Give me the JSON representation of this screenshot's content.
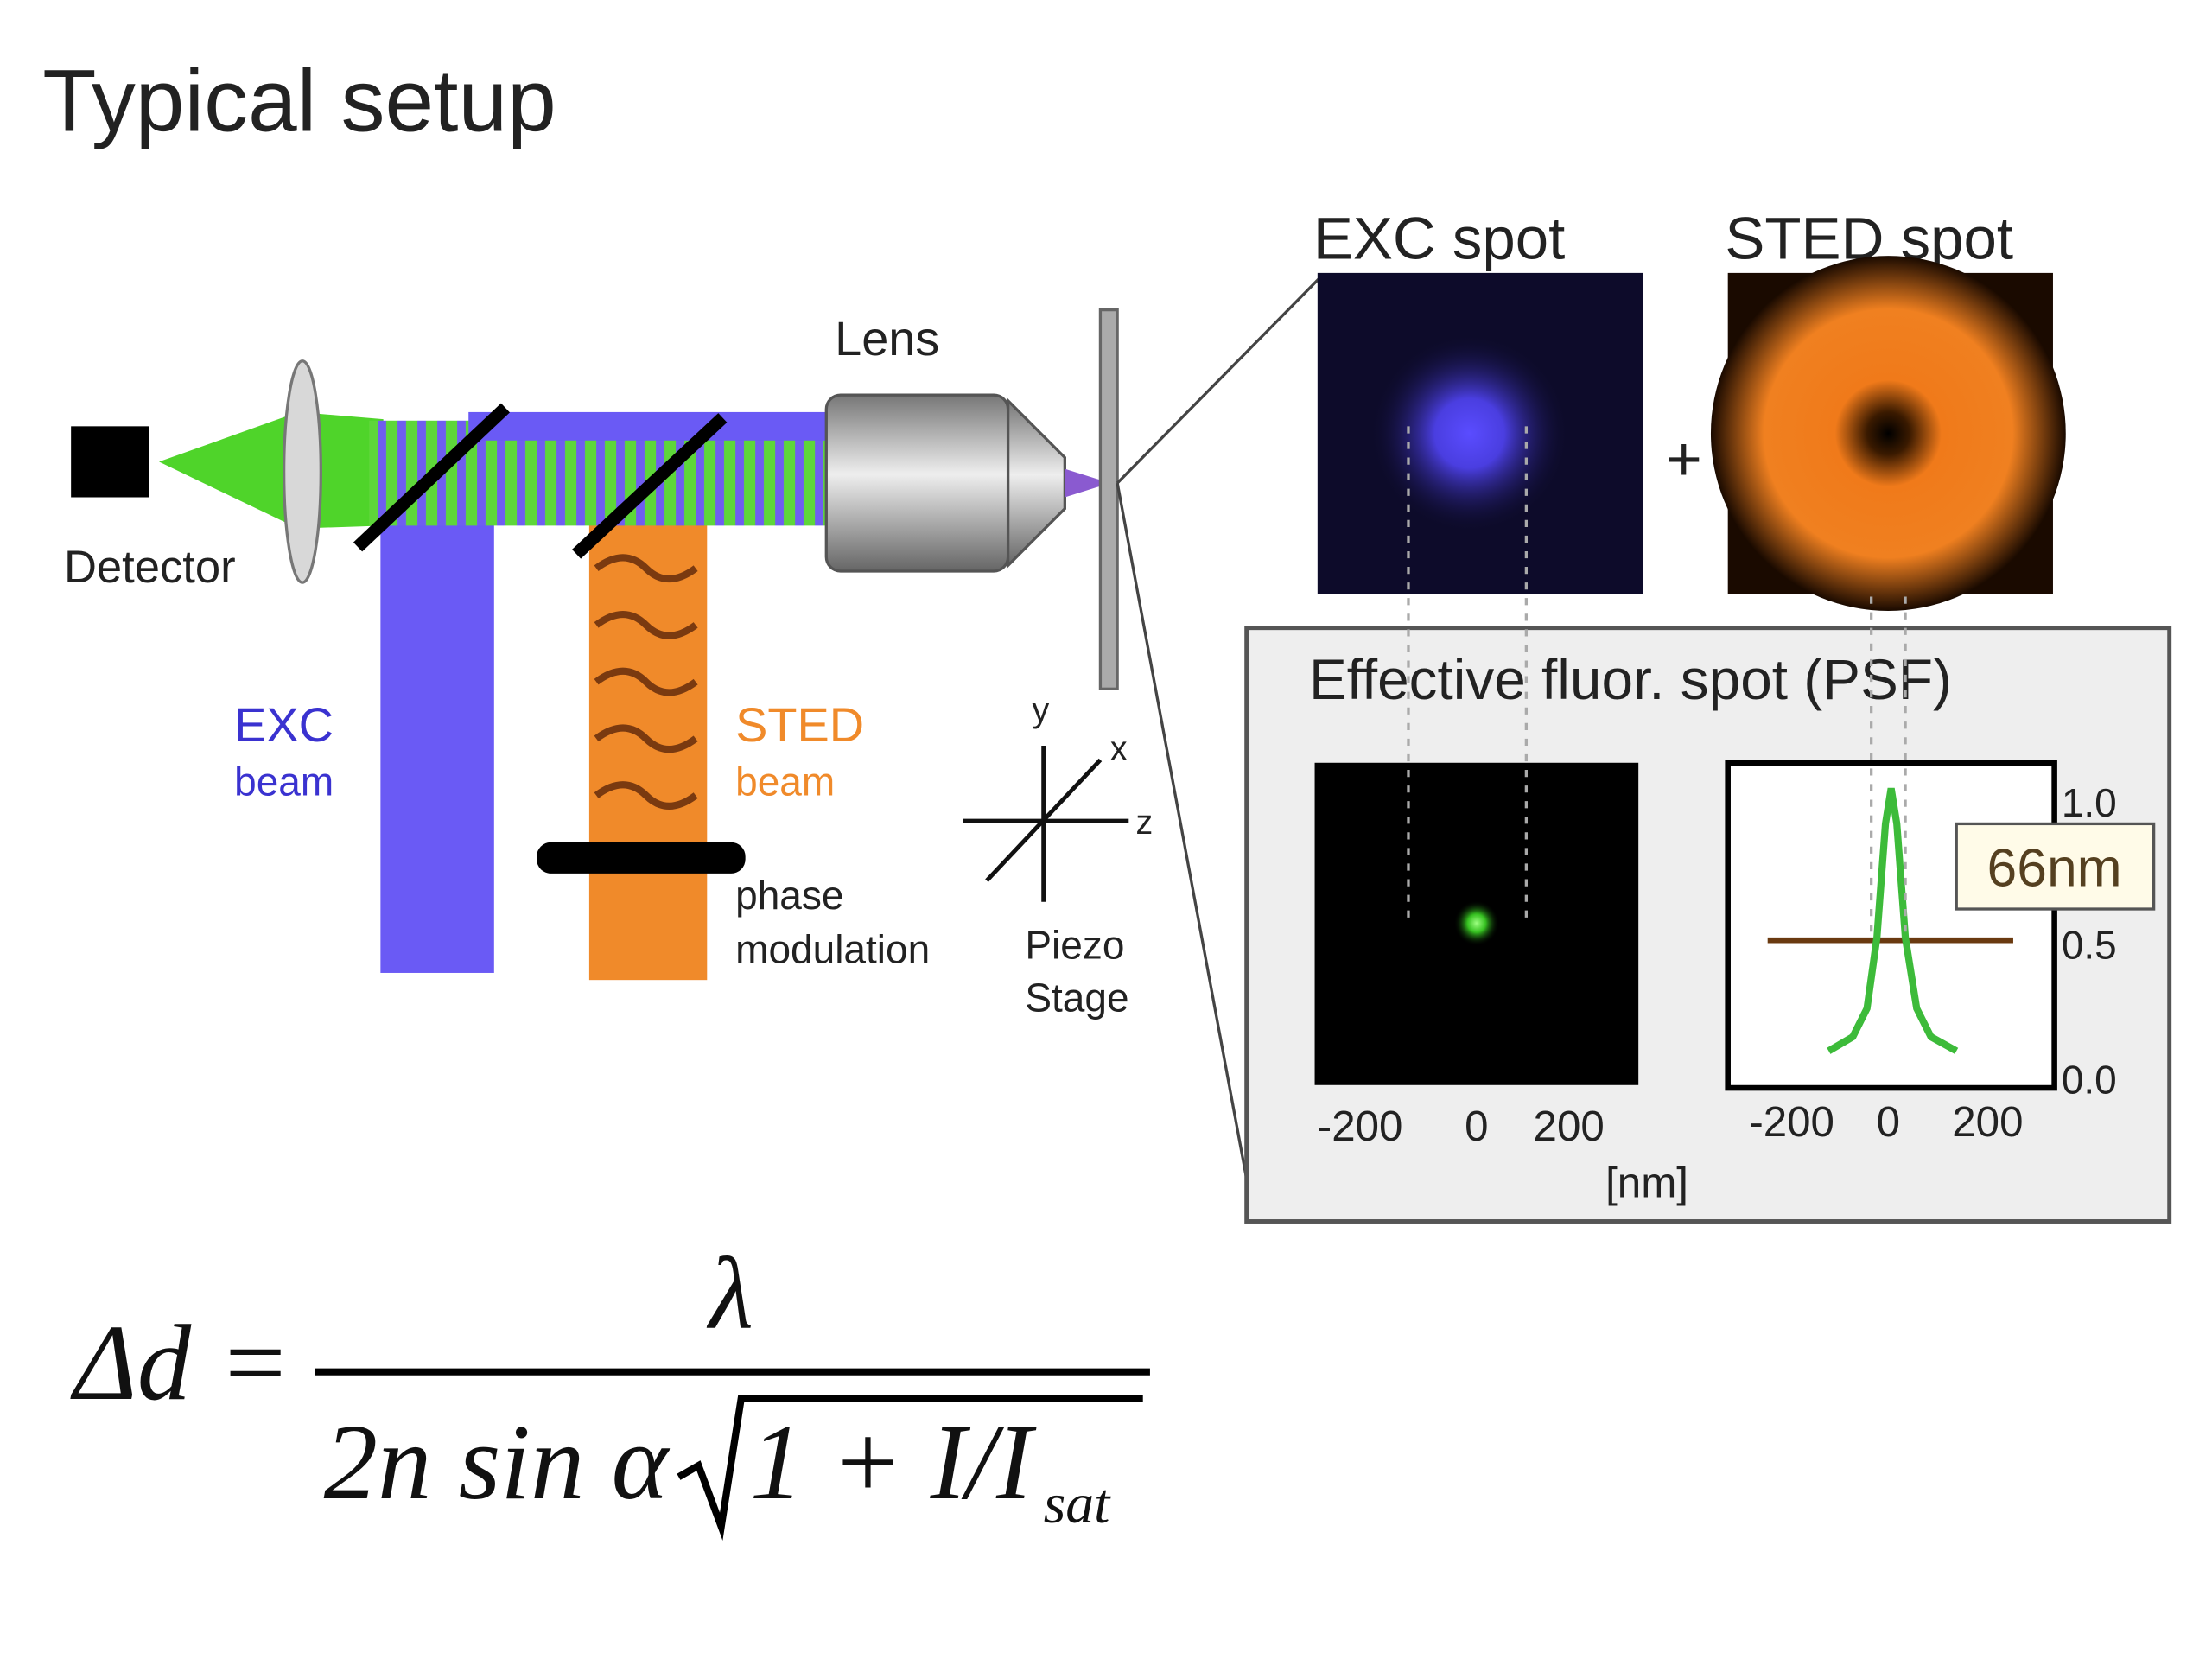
{
  "header": {
    "title": "Typical setup"
  },
  "setup": {
    "detector": "Detector",
    "lens": "Lens",
    "exc_beam": [
      "EXC",
      "beam"
    ],
    "sted_beam": [
      "STED",
      "beam"
    ],
    "phase_modulation": [
      "phase",
      "modulation"
    ],
    "piezo_stage": [
      "Piezo",
      "Stage"
    ],
    "axes": [
      "y",
      "x",
      "z"
    ]
  },
  "spots": {
    "exc_title": "EXC spot",
    "sted_title": "STED spot",
    "plus": "+",
    "effective_title": "Effective fluor. spot (PSF)",
    "image_ticks": [
      "-200",
      "0",
      "200"
    ],
    "plot_ticks": [
      "-200",
      "0",
      "200"
    ],
    "x_unit": "[nm]",
    "plot_yticks": [
      "1.0",
      "0.5",
      "0.0"
    ],
    "fwhm_label": "66nm"
  },
  "formula": {
    "lhs": "Δd =",
    "numerator": "λ",
    "denominator": "2n sin α",
    "radicand": "1 + I/I",
    "subscript": "sat"
  }
}
